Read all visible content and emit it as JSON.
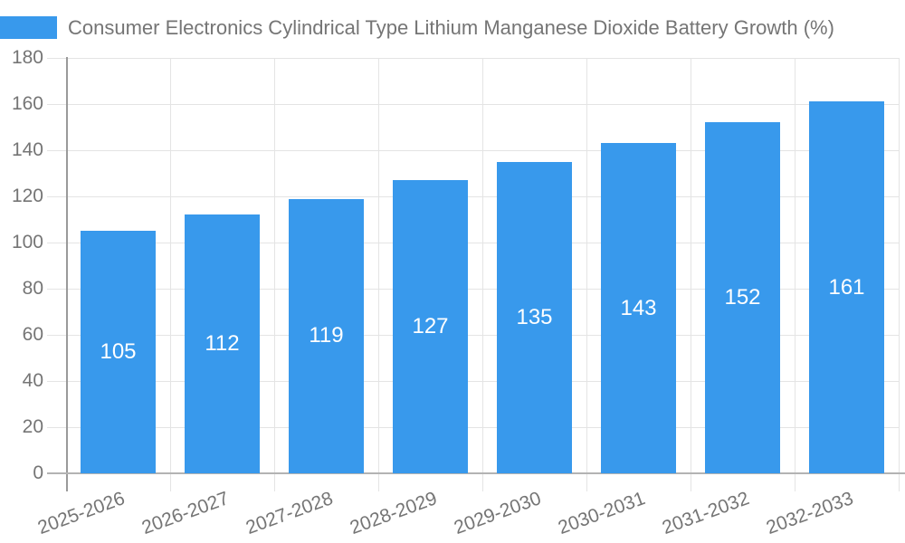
{
  "legend": {
    "series_label": "Consumer Electronics Cylindrical Type Lithium Manganese Dioxide Battery Growth (%)"
  },
  "chart_data": {
    "type": "bar",
    "title": "",
    "xlabel": "",
    "ylabel": "",
    "categories": [
      "2025-2026",
      "2026-2027",
      "2027-2028",
      "2028-2029",
      "2029-2030",
      "2030-2031",
      "2031-2032",
      "2032-2033"
    ],
    "series": [
      {
        "name": "Consumer Electronics Cylindrical Type Lithium Manganese Dioxide Battery Growth (%)",
        "values": [
          105,
          112,
          119,
          127,
          135,
          143,
          152,
          161
        ]
      }
    ],
    "values": [
      105,
      112,
      119,
      127,
      135,
      143,
      152,
      161
    ],
    "bar_labels": [
      "105",
      "112",
      "119",
      "127",
      "135",
      "143",
      "152",
      "161"
    ],
    "ylim": [
      0,
      180
    ],
    "yticks": [
      0,
      20,
      40,
      60,
      80,
      100,
      120,
      140,
      160,
      180
    ],
    "grid": true,
    "legend_position": "top-left",
    "colors": {
      "bar": "#3899ec",
      "bar_label": "#ffffff",
      "axis_text": "#757575",
      "grid": "#e4e4e4",
      "y_axis_line": "#9a9a9a",
      "x_axis_line": "#b3b3b3",
      "legend_text": "#757575"
    }
  }
}
